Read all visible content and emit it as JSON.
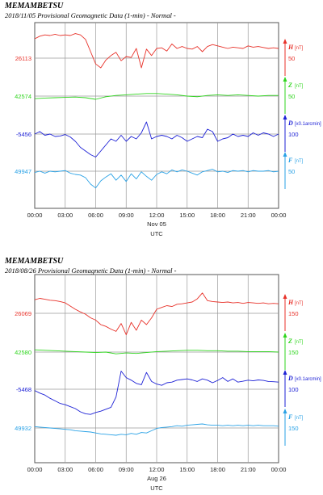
{
  "chart_data": [
    {
      "type": "line",
      "station": "MEMAMBETSU",
      "title": "2018/11/05  Provisional Geomagnetic Data (1-min)  - Normal -",
      "xlabel": "UTC",
      "date_label": "Nov 05",
      "x_ticks": [
        "00:00",
        "03:00",
        "06:00",
        "09:00",
        "12:00",
        "15:00",
        "18:00",
        "21:00",
        "00:00"
      ],
      "grid": true,
      "series": [
        {
          "name": "H",
          "unit": "[nT]",
          "baseline": "26113",
          "scale": "50",
          "color": "#e8322a",
          "x": [
            0,
            0.5,
            1,
            1.5,
            2,
            2.5,
            3,
            3.5,
            4,
            4.5,
            5,
            5.5,
            6,
            6.5,
            7,
            7.5,
            8,
            8.5,
            9,
            9.5,
            10,
            10.5,
            11,
            11.5,
            12,
            12.5,
            13,
            13.5,
            14,
            14.5,
            15,
            15.5,
            16,
            16.5,
            17,
            17.5,
            18,
            18.5,
            19,
            19.5,
            20,
            20.5,
            21,
            21.5,
            22,
            22.5,
            23,
            23.5,
            24
          ],
          "y": [
            60,
            68,
            72,
            70,
            74,
            70,
            72,
            70,
            76,
            72,
            58,
            20,
            -18,
            -30,
            -6,
            8,
            18,
            -8,
            5,
            2,
            30,
            -30,
            28,
            8,
            30,
            32,
            22,
            44,
            30,
            36,
            30,
            28,
            36,
            20,
            36,
            42,
            38,
            34,
            30,
            34,
            32,
            30,
            38,
            34,
            36,
            33,
            30,
            32,
            30
          ]
        },
        {
          "name": "Z",
          "unit": "[nT]",
          "baseline": "42574",
          "scale": "50",
          "color": "#2fd51e",
          "x": [
            0,
            1,
            2,
            3,
            4,
            5,
            6,
            7,
            8,
            9,
            10,
            11,
            12,
            13,
            14,
            15,
            16,
            17,
            18,
            19,
            20,
            21,
            22,
            23,
            24
          ],
          "y": [
            -8,
            -6,
            -5,
            -4,
            -3,
            -5,
            -10,
            -2,
            2,
            4,
            6,
            8,
            8,
            6,
            4,
            0,
            -2,
            2,
            4,
            2,
            4,
            2,
            0,
            2,
            2
          ]
        },
        {
          "name": "D",
          "unit": "[x0.1arcmin]",
          "baseline": "-5456",
          "scale": "100",
          "color": "#1e22d6",
          "x": [
            0,
            0.5,
            1,
            1.5,
            2,
            2.5,
            3,
            3.5,
            4,
            4.5,
            5,
            5.5,
            6,
            6.5,
            7,
            7.5,
            8,
            8.5,
            9,
            9.5,
            10,
            10.5,
            11,
            11.5,
            12,
            12.5,
            13,
            13.5,
            14,
            14.5,
            15,
            15.5,
            16,
            16.5,
            17,
            17.5,
            18,
            18.5,
            19,
            19.5,
            20,
            20.5,
            21,
            21.5,
            22,
            22.5,
            23,
            23.5,
            24
          ],
          "y": [
            0,
            10,
            -5,
            0,
            -10,
            -8,
            -2,
            -12,
            -30,
            -55,
            -70,
            -85,
            -95,
            -70,
            -45,
            -20,
            -30,
            -5,
            -30,
            -10,
            -20,
            5,
            50,
            -20,
            -10,
            -5,
            -10,
            -20,
            -5,
            -15,
            -30,
            -20,
            -10,
            -15,
            20,
            10,
            -30,
            -20,
            -15,
            0,
            -10,
            -5,
            -10,
            5,
            -5,
            5,
            0,
            -10,
            0
          ]
        },
        {
          "name": "F",
          "unit": "[nT]",
          "baseline": "49947",
          "scale": "50",
          "color": "#2aa2e6",
          "x": [
            0,
            0.5,
            1,
            1.5,
            2,
            2.5,
            3,
            3.5,
            4,
            4.5,
            5,
            5.5,
            6,
            6.5,
            7,
            7.5,
            8,
            8.5,
            9,
            9.5,
            10,
            10.5,
            11,
            11.5,
            12,
            12.5,
            13,
            13.5,
            14,
            14.5,
            15,
            15.5,
            16,
            16.5,
            17,
            17.5,
            18,
            18.5,
            19,
            19.5,
            20,
            20.5,
            21,
            21.5,
            22,
            22.5,
            23,
            23.5,
            24
          ],
          "y": [
            -4,
            0,
            -6,
            0,
            -2,
            0,
            2,
            -6,
            -10,
            -12,
            -20,
            -40,
            -52,
            -30,
            -18,
            -8,
            -28,
            -12,
            -32,
            -8,
            -24,
            -2,
            -16,
            -28,
            -10,
            -2,
            -8,
            4,
            -2,
            4,
            0,
            -6,
            -12,
            -2,
            2,
            6,
            -2,
            0,
            -4,
            2,
            0,
            2,
            -2,
            2,
            0,
            0,
            2,
            -2,
            0
          ]
        }
      ]
    },
    {
      "type": "line",
      "station": "MEMAMBETSU",
      "title": "2018/08/26  Provisional Geomagnetic Data (1-min)  - Normal -",
      "xlabel": "UTC",
      "date_label": "Aug 26",
      "x_ticks": [
        "00:00",
        "03:00",
        "06:00",
        "09:00",
        "12:00",
        "15:00",
        "18:00",
        "21:00",
        "00:00"
      ],
      "grid": true,
      "series": [
        {
          "name": "H",
          "unit": "[nT]",
          "baseline": "26069",
          "scale": "150",
          "color": "#e8322a",
          "x": [
            0,
            0.5,
            1,
            1.5,
            2,
            2.5,
            3,
            3.5,
            4,
            4.5,
            5,
            5.5,
            6,
            6.5,
            7,
            7.5,
            8,
            8.5,
            9,
            9.5,
            10,
            10.5,
            11,
            11.5,
            12,
            12.5,
            13,
            13.5,
            14,
            14.5,
            15,
            15.5,
            16,
            16.5,
            17,
            17.5,
            18,
            18.5,
            19,
            19.5,
            20,
            20.5,
            21,
            21.5,
            22,
            22.5,
            23,
            23.5,
            24
          ],
          "y": [
            60,
            66,
            62,
            58,
            56,
            52,
            46,
            32,
            18,
            6,
            -4,
            -20,
            -30,
            -50,
            -58,
            -70,
            -80,
            -45,
            -95,
            -40,
            -75,
            -30,
            -50,
            -20,
            18,
            26,
            34,
            30,
            40,
            42,
            46,
            50,
            64,
            90,
            56,
            52,
            50,
            48,
            50,
            46,
            48,
            44,
            48,
            46,
            44,
            46,
            42,
            44,
            42
          ]
        },
        {
          "name": "Z",
          "unit": "[nT]",
          "baseline": "42580",
          "scale": "150",
          "color": "#2fd51e",
          "x": [
            0,
            1,
            2,
            3,
            4,
            5,
            6,
            7,
            8,
            9,
            10,
            11,
            12,
            13,
            14,
            15,
            16,
            17,
            18,
            19,
            20,
            21,
            22,
            23,
            24
          ],
          "y": [
            10,
            8,
            6,
            4,
            2,
            0,
            -2,
            0,
            -8,
            -4,
            -6,
            -2,
            2,
            4,
            6,
            8,
            8,
            6,
            6,
            4,
            4,
            2,
            2,
            2,
            0
          ]
        },
        {
          "name": "D",
          "unit": "[x0.1arcmin]",
          "baseline": "-5468",
          "scale": "100",
          "color": "#1e22d6",
          "x": [
            0,
            0.5,
            1,
            1.5,
            2,
            2.5,
            3,
            3.5,
            4,
            4.5,
            5,
            5.5,
            6,
            6.5,
            7,
            7.5,
            8,
            8.5,
            9,
            9.5,
            10,
            10.5,
            11,
            11.5,
            12,
            12.5,
            13,
            13.5,
            14,
            14.5,
            15,
            15.5,
            16,
            16.5,
            17,
            17.5,
            18,
            18.5,
            19,
            19.5,
            20,
            20.5,
            21,
            21.5,
            22,
            22.5,
            23,
            23.5,
            24
          ],
          "y": [
            -10,
            -30,
            -45,
            -70,
            -90,
            -110,
            -120,
            -135,
            -150,
            -175,
            -190,
            -195,
            -180,
            -170,
            -155,
            -140,
            -60,
            140,
            90,
            70,
            45,
            35,
            130,
            60,
            40,
            30,
            50,
            55,
            70,
            75,
            80,
            72,
            60,
            80,
            70,
            50,
            68,
            90,
            60,
            80,
            55,
            62,
            70,
            65,
            72,
            68,
            60,
            58,
            55
          ]
        },
        {
          "name": "F",
          "unit": "[nT]",
          "baseline": "49932",
          "scale": "150",
          "color": "#2aa2e6",
          "x": [
            0,
            0.5,
            1,
            1.5,
            2,
            2.5,
            3,
            3.5,
            4,
            4.5,
            5,
            5.5,
            6,
            6.5,
            7,
            7.5,
            8,
            8.5,
            9,
            9.5,
            10,
            10.5,
            11,
            11.5,
            12,
            12.5,
            13,
            13.5,
            14,
            14.5,
            15,
            15.5,
            16,
            16.5,
            17,
            17.5,
            18,
            18.5,
            19,
            19.5,
            20,
            20.5,
            21,
            21.5,
            22,
            22.5,
            23,
            23.5,
            24
          ],
          "y": [
            6,
            4,
            2,
            0,
            -2,
            -4,
            -6,
            -8,
            -12,
            -14,
            -16,
            -18,
            -22,
            -26,
            -28,
            -30,
            -32,
            -28,
            -30,
            -24,
            -28,
            -20,
            -22,
            -12,
            -2,
            2,
            4,
            6,
            10,
            8,
            12,
            14,
            16,
            18,
            14,
            12,
            12,
            10,
            12,
            10,
            12,
            10,
            12,
            10,
            12,
            10,
            10,
            10,
            8
          ]
        }
      ]
    }
  ]
}
